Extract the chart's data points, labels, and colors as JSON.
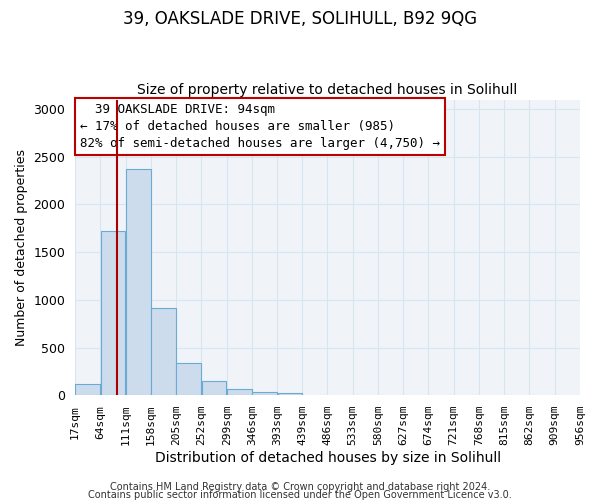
{
  "title": "39, OAKSLADE DRIVE, SOLIHULL, B92 9QG",
  "subtitle": "Size of property relative to detached houses in Solihull",
  "xlabel": "Distribution of detached houses by size in Solihull",
  "ylabel": "Number of detached properties",
  "bin_edges": [
    17,
    64,
    111,
    158,
    205,
    252,
    299,
    346,
    393,
    439,
    486,
    533,
    580,
    627,
    674,
    721,
    768,
    815,
    862,
    909,
    956
  ],
  "bin_counts": [
    120,
    1720,
    2370,
    910,
    340,
    150,
    65,
    30,
    20,
    0,
    0,
    0,
    0,
    0,
    0,
    0,
    0,
    0,
    0,
    0
  ],
  "bar_color": "#ccdcec",
  "bar_edge_color": "#6aaad4",
  "vline_x": 94,
  "vline_color": "#aa0000",
  "annotation_line1": "  39 OAKSLADE DRIVE: 94sqm",
  "annotation_line2": "← 17% of detached houses are smaller (985)",
  "annotation_line3": "82% of semi-detached houses are larger (4,750) →",
  "annotation_box_facecolor": "#ffffff",
  "annotation_box_edgecolor": "#bb0000",
  "ylim": [
    0,
    3100
  ],
  "yticks": [
    0,
    500,
    1000,
    1500,
    2000,
    2500,
    3000
  ],
  "tick_labels": [
    "17sqm",
    "64sqm",
    "111sqm",
    "158sqm",
    "205sqm",
    "252sqm",
    "299sqm",
    "346sqm",
    "393sqm",
    "439sqm",
    "486sqm",
    "533sqm",
    "580sqm",
    "627sqm",
    "674sqm",
    "721sqm",
    "768sqm",
    "815sqm",
    "862sqm",
    "909sqm",
    "956sqm"
  ],
  "footer_line1": "Contains HM Land Registry data © Crown copyright and database right 2024.",
  "footer_line2": "Contains public sector information licensed under the Open Government Licence v3.0.",
  "plot_bg_color": "#f0f4f8",
  "fig_bg_color": "#ffffff",
  "grid_color": "#d8e4f0",
  "title_fontsize": 12,
  "subtitle_fontsize": 10,
  "xlabel_fontsize": 10,
  "ylabel_fontsize": 9,
  "tick_fontsize": 8,
  "annotation_fontsize": 9,
  "footer_fontsize": 7
}
